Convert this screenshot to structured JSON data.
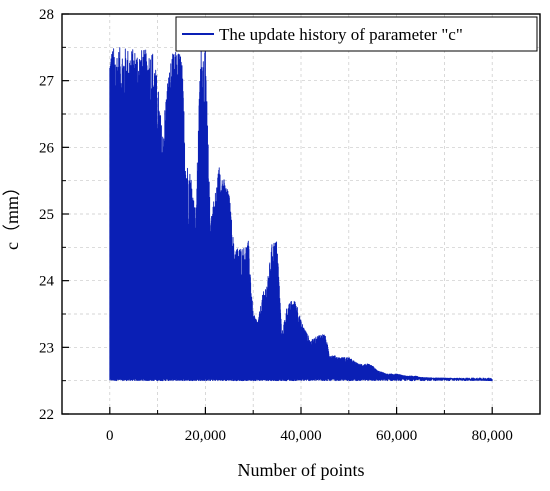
{
  "chart_data": {
    "type": "line",
    "title": "",
    "xlabel": "Number of points",
    "ylabel": "c（mm）",
    "xlim": [
      -10000,
      90000
    ],
    "ylim": [
      22,
      28
    ],
    "xticks": [
      0,
      20000,
      40000,
      60000,
      80000
    ],
    "xtick_labels": [
      "0",
      "20,000",
      "40,000",
      "60,000",
      "80,000"
    ],
    "yticks": [
      22,
      23,
      24,
      25,
      26,
      27,
      28
    ],
    "ytick_labels": [
      "22",
      "23",
      "24",
      "25",
      "26",
      "27",
      "28"
    ],
    "grid": true,
    "legend_position": "top-right",
    "series_color": "#0a1fb5",
    "series": [
      {
        "name": "The update history of parameter \"c\"",
        "floor": 22.5,
        "x_end": 80000,
        "envelope_x": [
          0,
          2000,
          4000,
          5000,
          6000,
          8000,
          9000,
          10000,
          11000,
          12000,
          13000,
          14000,
          15000,
          16000,
          17000,
          18000,
          19000,
          20000,
          21000,
          22000,
          23000,
          24000,
          25000,
          26000,
          27000,
          28000,
          29000,
          30000,
          31000,
          32000,
          33000,
          34000,
          35000,
          36000,
          37000,
          38000,
          39000,
          40000,
          42000,
          44000,
          45000,
          46000,
          48000,
          50000,
          52000,
          54000,
          55000,
          56000,
          58000,
          60000,
          62000,
          64000,
          65000,
          68000,
          70000,
          75000,
          80000
        ],
        "envelope_y": [
          27.5,
          27.5,
          27.5,
          27.48,
          27.48,
          27.46,
          27.46,
          27.0,
          26.2,
          27.0,
          27.4,
          27.45,
          27.45,
          25.8,
          25.6,
          25.0,
          27.5,
          27.5,
          25.0,
          25.3,
          25.8,
          25.5,
          25.3,
          24.5,
          24.5,
          24.5,
          24.6,
          23.5,
          23.4,
          23.8,
          24.0,
          24.6,
          24.6,
          23.2,
          23.6,
          23.7,
          23.7,
          23.4,
          23.1,
          23.2,
          23.2,
          22.9,
          22.85,
          22.85,
          22.75,
          22.75,
          22.72,
          22.65,
          22.6,
          22.6,
          22.57,
          22.57,
          22.55,
          22.54,
          22.54,
          22.52,
          22.5
        ]
      }
    ]
  }
}
